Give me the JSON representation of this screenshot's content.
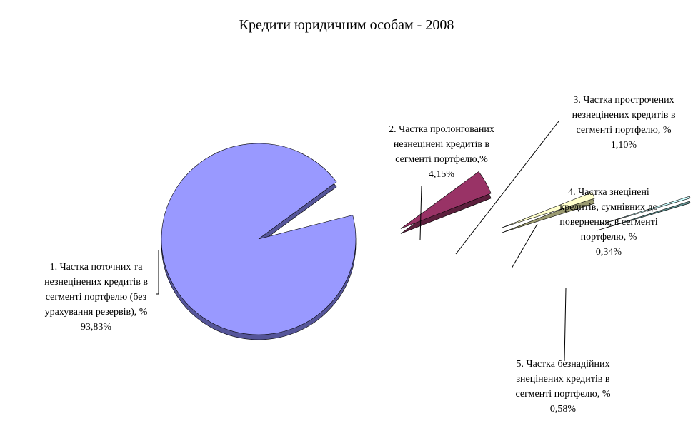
{
  "chart_data": {
    "type": "pie",
    "style": "3d-exploded",
    "title": "Кредити юридичним особам - 2008",
    "slices": [
      {
        "label_lines": [
          "1. Частка поточних та",
          "незнецінених кредитів в",
          "сегменті портфелю (без",
          "урахування резервів), %",
          "93,83%"
        ],
        "value": 93.83,
        "color": "#9999ff",
        "side_color": "#555599"
      },
      {
        "label_lines": [
          "2. Частка пролонгованих",
          "незнецінені кредитів в",
          "сегменті портфелю,%",
          "4,15%"
        ],
        "value": 4.15,
        "color": "#993366",
        "side_color": "#5c1f3d"
      },
      {
        "label_lines": [
          "3. Частка  прострочених",
          "незнецінених кредитів в",
          "сегменті портфелю, %",
          "1,10%"
        ],
        "value": 1.1,
        "color": "#ffffcc",
        "side_color": "#9a9a70"
      },
      {
        "label_lines": [
          "4. Частка знецінені",
          "кредитів, сумнівних до",
          "повернення, в сегменті",
          "портфелю, %",
          "0,34%"
        ],
        "value": 0.34,
        "color": "#ccffff",
        "side_color": "#5f8f8f"
      },
      {
        "label_lines": [
          "5. Частка безнадійних",
          "знецінених кредитів в",
          "сегменті портфелю, %",
          "0,58%"
        ],
        "value": 0.58,
        "color": "#660066",
        "side_color": "#330033"
      }
    ]
  }
}
